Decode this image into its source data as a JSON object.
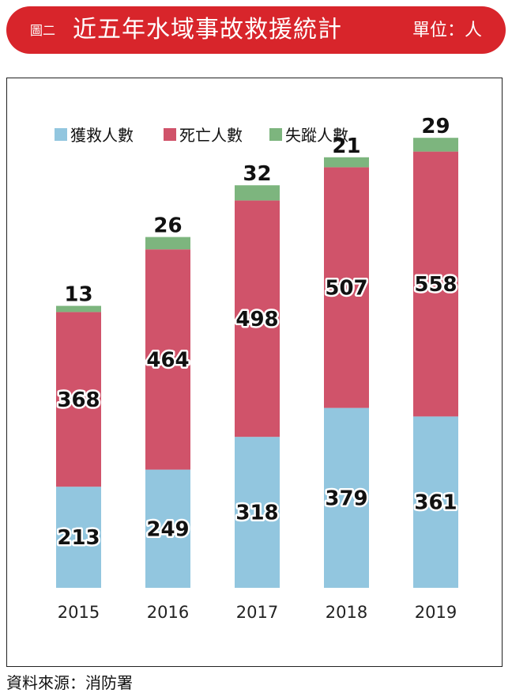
{
  "header": {
    "figure_label": "圖二",
    "title": "近五年水域事故救援統計",
    "unit": "單位：人"
  },
  "source": "資料來源：消防署",
  "colors": {
    "header_bg": "#d8252b",
    "rescued": "#92c6df",
    "dead": "#d0536a",
    "missing": "#7db57e",
    "text": "#111111"
  },
  "chart_data": {
    "type": "bar",
    "stacked": true,
    "categories": [
      "2015",
      "2016",
      "2017",
      "2018",
      "2019"
    ],
    "series": [
      {
        "name": "獲救人數",
        "values": [
          213,
          249,
          318,
          379,
          361
        ]
      },
      {
        "name": "死亡人數",
        "values": [
          368,
          464,
          498,
          507,
          558
        ]
      },
      {
        "name": "失蹤人數",
        "values": [
          13,
          26,
          32,
          21,
          29
        ]
      }
    ],
    "legend_position": "top-left",
    "grid": false,
    "ylim": [
      0,
      950
    ]
  }
}
